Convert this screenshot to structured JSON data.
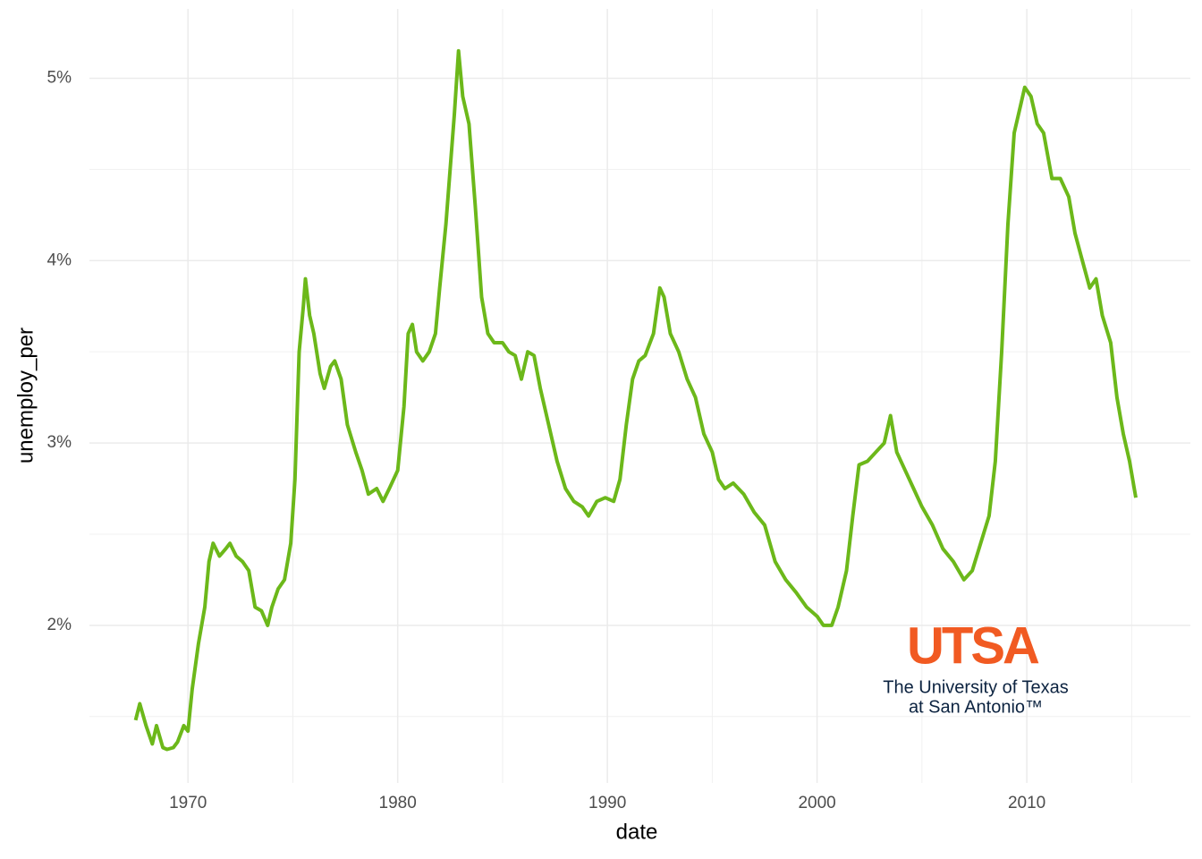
{
  "chart_data": {
    "type": "line",
    "x_label": "date",
    "y_label": "unemploy_per",
    "x": [
      1967.5,
      1967.7,
      1968.0,
      1968.3,
      1968.5,
      1968.8,
      1969.0,
      1969.3,
      1969.5,
      1969.8,
      1970.0,
      1970.2,
      1970.5,
      1970.8,
      1971.0,
      1971.2,
      1971.5,
      1971.8,
      1972.0,
      1972.3,
      1972.6,
      1972.9,
      1973.2,
      1973.5,
      1973.8,
      1974.0,
      1974.3,
      1974.6,
      1974.9,
      1975.1,
      1975.3,
      1975.5,
      1975.6,
      1975.8,
      1976.0,
      1976.3,
      1976.5,
      1976.8,
      1977.0,
      1977.3,
      1977.6,
      1978.0,
      1978.3,
      1978.6,
      1979.0,
      1979.3,
      1979.6,
      1980.0,
      1980.3,
      1980.5,
      1980.7,
      1980.9,
      1981.2,
      1981.5,
      1981.8,
      1982.0,
      1982.3,
      1982.5,
      1982.7,
      1982.9,
      1983.1,
      1983.4,
      1983.7,
      1984.0,
      1984.3,
      1984.6,
      1985.0,
      1985.3,
      1985.6,
      1985.9,
      1986.2,
      1986.5,
      1986.8,
      1987.2,
      1987.6,
      1988.0,
      1988.4,
      1988.8,
      1989.1,
      1989.5,
      1989.9,
      1990.3,
      1990.6,
      1990.9,
      1991.2,
      1991.5,
      1991.8,
      1992.2,
      1992.5,
      1992.7,
      1993.0,
      1993.4,
      1993.8,
      1994.2,
      1994.6,
      1995.0,
      1995.3,
      1995.6,
      1996.0,
      1996.5,
      1997.0,
      1997.5,
      1998.0,
      1998.5,
      1999.0,
      1999.5,
      2000.0,
      2000.3,
      2000.7,
      2001.0,
      2001.4,
      2001.7,
      2002.0,
      2002.4,
      2002.8,
      2003.2,
      2003.5,
      2003.8,
      2004.2,
      2004.6,
      2005.0,
      2005.5,
      2006.0,
      2006.5,
      2007.0,
      2007.4,
      2007.8,
      2008.2,
      2008.5,
      2008.8,
      2009.1,
      2009.4,
      2009.7,
      2009.9,
      2010.2,
      2010.5,
      2010.8,
      2011.2,
      2011.6,
      2012.0,
      2012.3,
      2012.6,
      2013.0,
      2013.3,
      2013.6,
      2014.0,
      2014.3,
      2014.6,
      2014.9,
      2015.2
    ],
    "series": [
      {
        "color": "#6cb81a",
        "values": [
          1.48,
          1.57,
          1.45,
          1.35,
          1.45,
          1.33,
          1.32,
          1.33,
          1.36,
          1.45,
          1.42,
          1.65,
          1.9,
          2.1,
          2.35,
          2.45,
          2.38,
          2.42,
          2.45,
          2.38,
          2.35,
          2.3,
          2.1,
          2.08,
          2.0,
          2.1,
          2.2,
          2.25,
          2.45,
          2.8,
          3.5,
          3.75,
          3.9,
          3.7,
          3.6,
          3.38,
          3.3,
          3.42,
          3.45,
          3.35,
          3.1,
          2.95,
          2.85,
          2.72,
          2.75,
          2.68,
          2.75,
          2.85,
          3.2,
          3.6,
          3.65,
          3.5,
          3.45,
          3.5,
          3.6,
          3.85,
          4.2,
          4.5,
          4.8,
          5.15,
          4.9,
          4.75,
          4.3,
          3.8,
          3.6,
          3.55,
          3.55,
          3.5,
          3.48,
          3.35,
          3.5,
          3.48,
          3.3,
          3.1,
          2.9,
          2.75,
          2.68,
          2.65,
          2.6,
          2.68,
          2.7,
          2.68,
          2.8,
          3.1,
          3.35,
          3.45,
          3.48,
          3.6,
          3.85,
          3.8,
          3.6,
          3.5,
          3.35,
          3.25,
          3.05,
          2.95,
          2.8,
          2.75,
          2.78,
          2.72,
          2.62,
          2.55,
          2.35,
          2.25,
          2.18,
          2.1,
          2.05,
          2.0,
          2.0,
          2.1,
          2.3,
          2.6,
          2.88,
          2.9,
          2.95,
          3.0,
          3.15,
          2.95,
          2.85,
          2.75,
          2.65,
          2.55,
          2.42,
          2.35,
          2.25,
          2.3,
          2.45,
          2.6,
          2.9,
          3.5,
          4.2,
          4.7,
          4.85,
          4.95,
          4.9,
          4.75,
          4.7,
          4.45,
          4.45,
          4.35,
          4.15,
          4.02,
          3.85,
          3.9,
          3.7,
          3.55,
          3.25,
          3.05,
          2.9,
          2.7
        ]
      }
    ],
    "xlim": [
      1965.3,
      2017.8
    ],
    "xticks": [
      1970,
      1980,
      1990,
      2000,
      2010
    ],
    "ylim": [
      1.136,
      5.38
    ],
    "yticks": [
      {
        "value": 2,
        "label": "2%"
      },
      {
        "value": 3,
        "label": "3%"
      },
      {
        "value": 4,
        "label": "4%"
      },
      {
        "value": 5,
        "label": "5%"
      }
    ],
    "grid": true,
    "logo": {
      "mark": "UTSA",
      "line1": "The University of Texas",
      "line2": "at San Antonio™"
    }
  }
}
